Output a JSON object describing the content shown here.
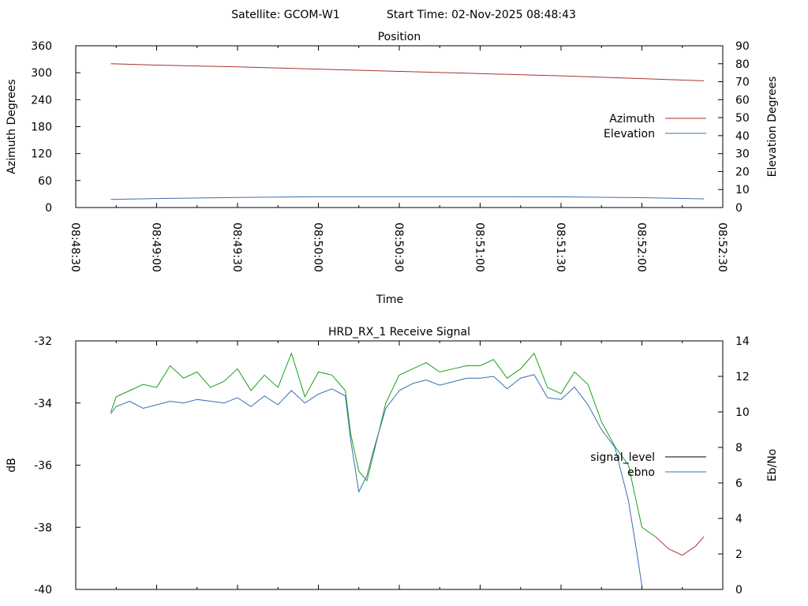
{
  "header": {
    "satellite": "Satellite: GCOM-W1",
    "start_time": "Start Time: 02-Nov-2025 08:48:43"
  },
  "chart_data": [
    {
      "type": "line",
      "title": "Position",
      "xlabel": "Time",
      "ylabel": "Azimuth Degrees",
      "y2label": "Elevation Degrees",
      "xlim": [
        "08:48:30",
        "08:52:30"
      ],
      "ylim": [
        0,
        360
      ],
      "y2lim": [
        0,
        90
      ],
      "xticks": [
        "08:48:30",
        "08:49:00",
        "08:49:30",
        "08:50:00",
        "08:50:30",
        "08:51:00",
        "08:51:30",
        "08:52:00",
        "08:52:30"
      ],
      "yticks": [
        0,
        60,
        120,
        180,
        240,
        300,
        360
      ],
      "y2ticks": [
        0,
        10,
        20,
        30,
        40,
        50,
        60,
        70,
        80,
        90
      ],
      "legend_position": "right",
      "series": [
        {
          "name": "Azimuth",
          "axis": "left",
          "color": "#a83232",
          "x": [
            "08:48:43",
            "08:49:00",
            "08:49:30",
            "08:50:00",
            "08:50:30",
            "08:51:00",
            "08:51:30",
            "08:52:00",
            "08:52:23"
          ],
          "values": [
            320,
            317,
            313,
            308,
            303,
            298,
            293,
            287,
            282
          ]
        },
        {
          "name": "Elevation",
          "axis": "right",
          "color": "#3a6fb0",
          "x": [
            "08:48:43",
            "08:49:00",
            "08:49:30",
            "08:50:00",
            "08:50:30",
            "08:51:00",
            "08:51:30",
            "08:52:00",
            "08:52:23"
          ],
          "values": [
            4.5,
            5,
            5.6,
            6,
            6,
            6,
            5.9,
            5.5,
            4.8
          ]
        }
      ]
    },
    {
      "type": "line",
      "title": "HRD_RX_1 Receive Signal",
      "ylabel": "dB",
      "y2label": "Eb/No",
      "xlim": [
        "08:48:30",
        "08:52:30"
      ],
      "ylim": [
        -40,
        -32
      ],
      "y2lim": [
        0,
        14
      ],
      "yticks": [
        -40,
        -38,
        -36,
        -34,
        -32
      ],
      "y2ticks": [
        0,
        2,
        4,
        6,
        8,
        10,
        12,
        14
      ],
      "legend_position": "right",
      "legend": [
        {
          "name": "signal_level",
          "color": "#000000"
        },
        {
          "name": "ebno",
          "color": "#3a6fb0"
        }
      ],
      "series": [
        {
          "name": "signal_level",
          "axis": "left",
          "color": "#1aa01a",
          "color_low": "#b03030",
          "x": [
            "08:48:43",
            "08:48:45",
            "08:48:50",
            "08:48:55",
            "08:49:00",
            "08:49:05",
            "08:49:10",
            "08:49:15",
            "08:49:20",
            "08:49:25",
            "08:49:30",
            "08:49:35",
            "08:49:40",
            "08:49:45",
            "08:49:50",
            "08:49:55",
            "08:50:00",
            "08:50:05",
            "08:50:10",
            "08:50:12",
            "08:50:15",
            "08:50:18",
            "08:50:20",
            "08:50:25",
            "08:50:30",
            "08:50:35",
            "08:50:40",
            "08:50:45",
            "08:50:50",
            "08:50:55",
            "08:51:00",
            "08:51:05",
            "08:51:10",
            "08:51:15",
            "08:51:20",
            "08:51:25",
            "08:51:30",
            "08:51:35",
            "08:51:40",
            "08:51:45",
            "08:51:50",
            "08:51:55",
            "08:52:00",
            "08:52:05",
            "08:52:10",
            "08:52:15",
            "08:52:20",
            "08:52:23"
          ],
          "values": [
            -34.3,
            -33.8,
            -33.6,
            -33.4,
            -33.5,
            -32.8,
            -33.2,
            -33.0,
            -33.5,
            -33.3,
            -32.9,
            -33.6,
            -33.1,
            -33.5,
            -32.4,
            -33.8,
            -33.0,
            -33.1,
            -33.6,
            -35.0,
            -36.2,
            -36.5,
            -35.8,
            -34.0,
            -33.1,
            -32.9,
            -32.7,
            -33.0,
            -32.9,
            -32.8,
            -32.8,
            -32.6,
            -33.2,
            -32.9,
            -32.4,
            -33.5,
            -33.7,
            -33.0,
            -33.4,
            -34.6,
            -35.4,
            -36.0,
            -38.0,
            -38.3,
            -38.7,
            -38.9,
            -38.6,
            -38.3
          ]
        },
        {
          "name": "ebno",
          "axis": "right",
          "color": "#3a6fb0",
          "x": [
            "08:48:43",
            "08:48:45",
            "08:48:50",
            "08:48:55",
            "08:49:00",
            "08:49:05",
            "08:49:10",
            "08:49:15",
            "08:49:20",
            "08:49:25",
            "08:49:30",
            "08:49:35",
            "08:49:40",
            "08:49:45",
            "08:49:50",
            "08:49:55",
            "08:50:00",
            "08:50:05",
            "08:50:10",
            "08:50:12",
            "08:50:15",
            "08:50:18",
            "08:50:20",
            "08:50:25",
            "08:50:30",
            "08:50:35",
            "08:50:40",
            "08:50:45",
            "08:50:50",
            "08:50:55",
            "08:51:00",
            "08:51:05",
            "08:51:10",
            "08:51:15",
            "08:51:20",
            "08:51:25",
            "08:51:30",
            "08:51:35",
            "08:51:40",
            "08:51:45",
            "08:51:50",
            "08:51:55",
            "08:51:58",
            "08:52:00"
          ],
          "values": [
            9.9,
            10.3,
            10.6,
            10.2,
            10.4,
            10.6,
            10.5,
            10.7,
            10.6,
            10.5,
            10.8,
            10.3,
            10.9,
            10.4,
            11.2,
            10.5,
            11.0,
            11.3,
            10.9,
            8.4,
            5.5,
            6.4,
            7.6,
            10.2,
            11.2,
            11.6,
            11.8,
            11.5,
            11.7,
            11.9,
            11.9,
            12.0,
            11.3,
            11.9,
            12.1,
            10.8,
            10.7,
            11.4,
            10.4,
            9.0,
            8.0,
            5.0,
            2.2,
            0.2
          ]
        }
      ]
    }
  ]
}
